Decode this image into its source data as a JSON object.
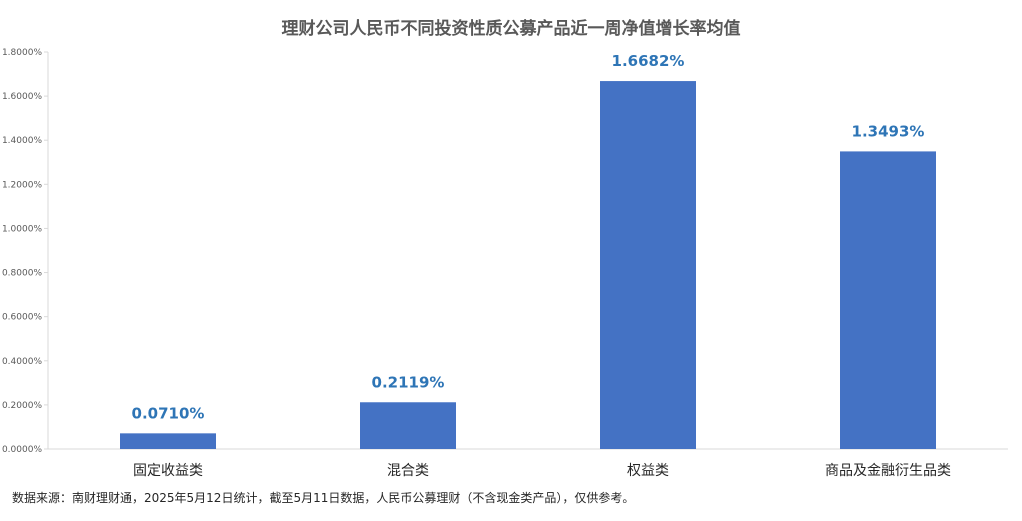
{
  "chart_data": {
    "type": "bar",
    "title": "理财公司人民币不同投资性质公募产品近一周净值增长率均值",
    "categories": [
      "固定收益类",
      "混合类",
      "权益类",
      "商品及金融衍生品类"
    ],
    "values": [
      0.071,
      0.2119,
      1.6682,
      1.3493
    ],
    "data_labels": [
      "0.0710%",
      "0.2119%",
      "1.6682%",
      "1.3493%"
    ],
    "ylim": [
      0,
      1.8
    ],
    "yticks": [
      0,
      0.2,
      0.4,
      0.6,
      0.8,
      1.0,
      1.2,
      1.4,
      1.6,
      1.8
    ],
    "ytick_labels": [
      "0.0000%",
      "0.2000%",
      "0.4000%",
      "0.6000%",
      "0.8000%",
      "1.0000%",
      "1.2000%",
      "1.4000%",
      "1.6000%",
      "1.8000%"
    ],
    "xlabel": "",
    "ylabel": "",
    "grid": false,
    "legend": "none",
    "bar_color": "#4472C4",
    "label_color": "#2E75B6"
  },
  "footer": {
    "source": "数据来源：南财理财通，2025年5月12日统计，截至5月11日数据，人民币公募理财（不含现金类产品），仅供参考。"
  }
}
